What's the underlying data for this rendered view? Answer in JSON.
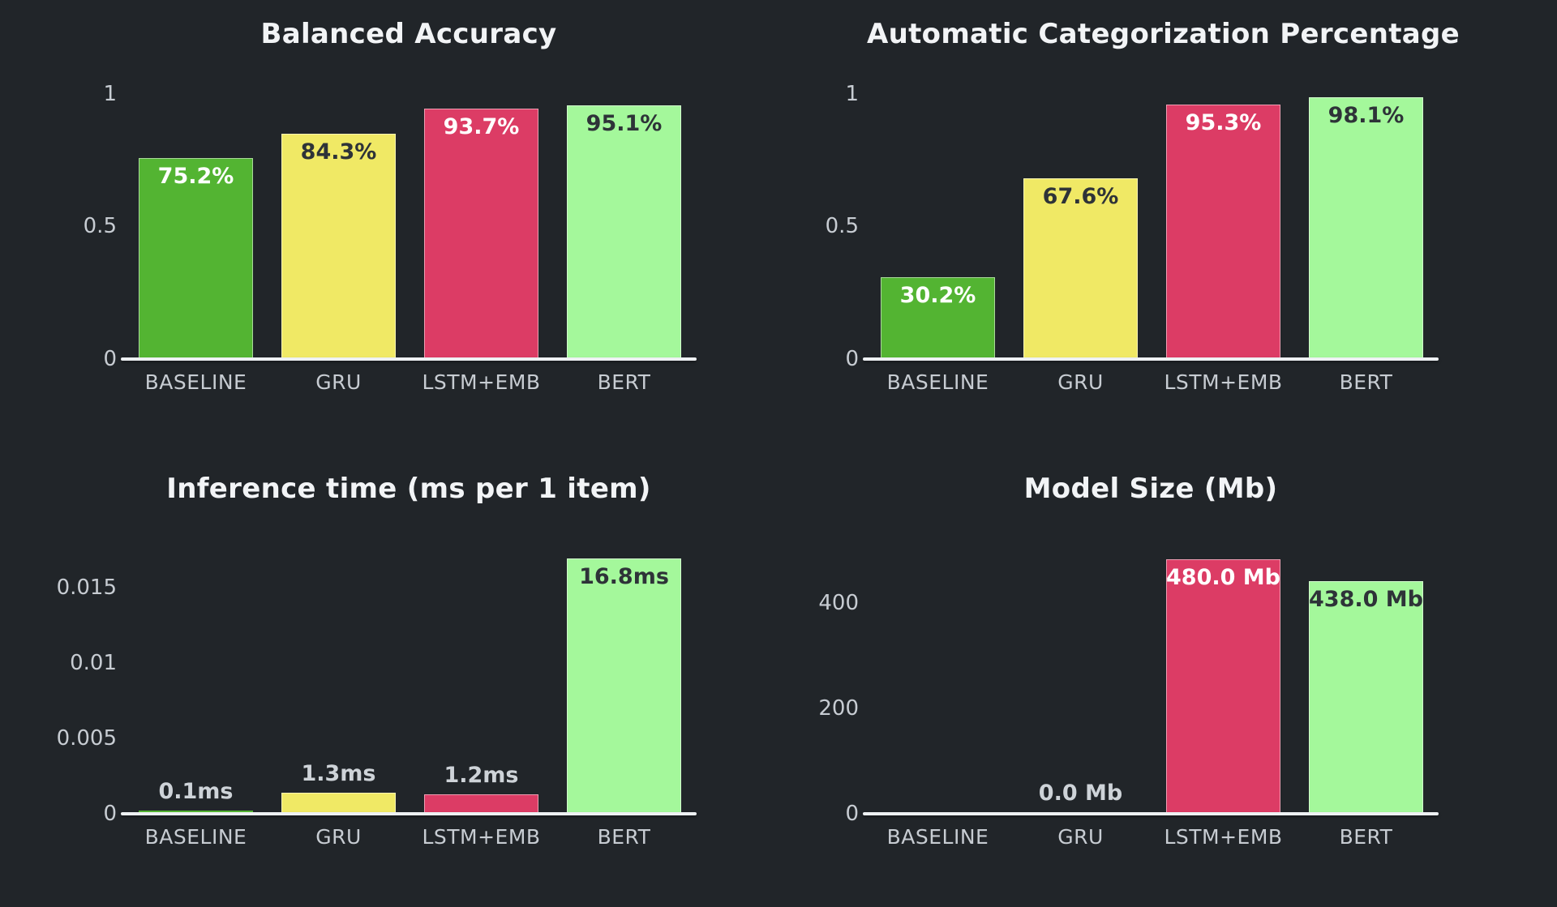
{
  "page": {
    "background_color": "#212529",
    "axis_color": "#eef1f3",
    "tick_text_color": "#c7ccd2",
    "title_text_color": "#f2f4f6"
  },
  "palette": {
    "baseline_green": "#53b432",
    "gru_yellow": "#f0e965",
    "lstm_pink": "#dc3c65",
    "bert_light_green": "#a4f89b",
    "label_on_dark_bar": "#ffffff",
    "label_on_light_bar": "#2e3338",
    "label_outside_bar": "#ced3d8"
  },
  "chart_data": [
    {
      "type": "bar",
      "title": "Balanced Accuracy",
      "categories": [
        "BASELINE",
        "GRU",
        "LSTM+EMB",
        "BERT"
      ],
      "values": [
        0.752,
        0.843,
        0.937,
        0.951
      ],
      "bar_labels": [
        "75.2%",
        "84.3%",
        "93.7%",
        "95.1%"
      ],
      "bar_label_placement": [
        "inside",
        "inside",
        "inside",
        "inside"
      ],
      "bar_label_colors": [
        "#ffffff",
        "#2e3338",
        "#ffffff",
        "#2e3338"
      ],
      "bar_colors": [
        "#53b432",
        "#f0e965",
        "#dc3c65",
        "#a4f89b"
      ],
      "xlabel": "",
      "ylabel": "",
      "ytick_values": [
        0,
        0.5,
        1
      ],
      "ytick_labels": [
        "0",
        "0.5",
        "1"
      ],
      "ylim": [
        0,
        1.1
      ],
      "grid": false,
      "legend": "none"
    },
    {
      "type": "bar",
      "title": "Automatic Categorization Percentage",
      "categories": [
        "BASELINE",
        "GRU",
        "LSTM+EMB",
        "BERT"
      ],
      "values": [
        0.302,
        0.676,
        0.953,
        0.981
      ],
      "bar_labels": [
        "30.2%",
        "67.6%",
        "95.3%",
        "98.1%"
      ],
      "bar_label_placement": [
        "inside",
        "inside",
        "inside",
        "inside"
      ],
      "bar_label_colors": [
        "#ffffff",
        "#2e3338",
        "#ffffff",
        "#2e3338"
      ],
      "bar_colors": [
        "#53b432",
        "#f0e965",
        "#dc3c65",
        "#a4f89b"
      ],
      "xlabel": "",
      "ylabel": "",
      "ytick_values": [
        0,
        0.5,
        1
      ],
      "ytick_labels": [
        "0",
        "0.5",
        "1"
      ],
      "ylim": [
        0,
        1.1
      ],
      "grid": false,
      "legend": "none"
    },
    {
      "type": "bar",
      "title": "Inference time (ms per 1 item)",
      "categories": [
        "BASELINE",
        "GRU",
        "LSTM+EMB",
        "BERT"
      ],
      "values": [
        0.0001,
        0.0013,
        0.0012,
        0.0168
      ],
      "bar_labels": [
        "0.1ms",
        "1.3ms",
        "1.2ms",
        "16.8ms"
      ],
      "bar_label_placement": [
        "above",
        "above",
        "above",
        "inside"
      ],
      "bar_label_colors": [
        "#ced3d8",
        "#ced3d8",
        "#ced3d8",
        "#2e3338"
      ],
      "bar_colors": [
        "#53b432",
        "#f0e965",
        "#dc3c65",
        "#a4f89b"
      ],
      "xlabel": "",
      "ylabel": "",
      "ytick_values": [
        0,
        0.005,
        0.01,
        0.015
      ],
      "ytick_labels": [
        "0",
        "0.005",
        "0.01",
        "0.015"
      ],
      "ylim": [
        0,
        0.01935
      ],
      "grid": false,
      "legend": "none"
    },
    {
      "type": "bar",
      "title": "Model Size (Mb)",
      "categories": [
        "BASELINE",
        "GRU",
        "LSTM+EMB",
        "BERT"
      ],
      "values": [
        0,
        0,
        480,
        438
      ],
      "bar_labels": [
        "",
        "0.0 Mb",
        "480.0 Mb",
        "438.0 Mb"
      ],
      "bar_label_placement": [
        "none",
        "above",
        "inside",
        "inside"
      ],
      "bar_label_colors": [
        "",
        "#ced3d8",
        "#ffffff",
        "#2e3338"
      ],
      "bar_colors": [
        "#53b432",
        "#f0e965",
        "#dc3c65",
        "#a4f89b"
      ],
      "xlabel": "",
      "ylabel": "",
      "ytick_values": [
        0,
        200,
        400
      ],
      "ytick_labels": [
        "0",
        "200",
        "400"
      ],
      "ylim": [
        0,
        554
      ],
      "grid": false,
      "legend": "none"
    }
  ]
}
